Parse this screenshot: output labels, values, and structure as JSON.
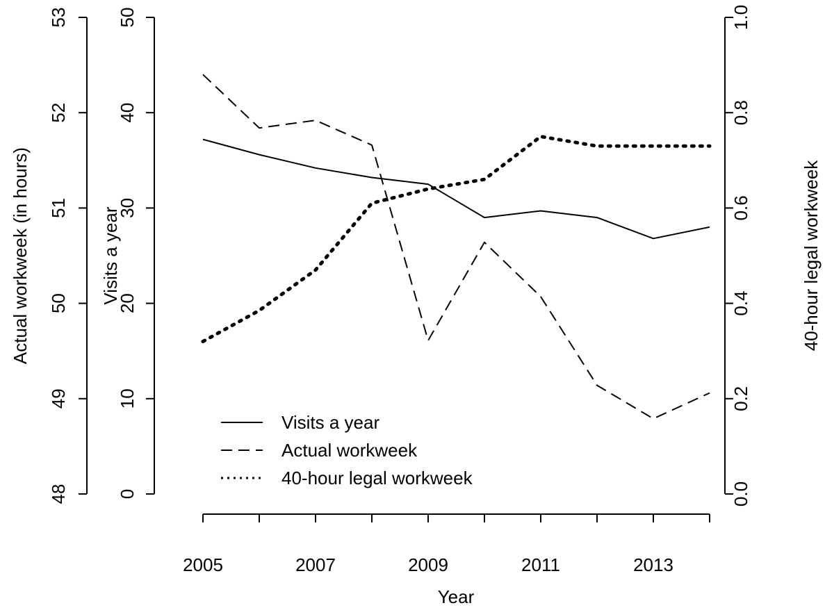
{
  "chart_data": {
    "type": "line",
    "xlabel": "Year",
    "x": [
      2005,
      2006,
      2007,
      2008,
      2009,
      2010,
      2011,
      2012,
      2013,
      2014
    ],
    "x_tick_labels": [
      "2005",
      "2007",
      "2009",
      "2011",
      "2013"
    ],
    "axes": {
      "left": {
        "label": "Actual workweek (in hours)",
        "range": [
          48,
          53
        ],
        "ticks": [
          "48",
          "49",
          "50",
          "51",
          "52",
          "53"
        ]
      },
      "middle": {
        "label": "Visits a year",
        "range": [
          0,
          50
        ],
        "ticks": [
          "0",
          "10",
          "20",
          "30",
          "40",
          "50"
        ]
      },
      "right": {
        "label": "40-hour legal workweek",
        "range": [
          0,
          1
        ],
        "ticks": [
          "0.0",
          "0.2",
          "0.4",
          "0.6",
          "0.8",
          "1.0"
        ]
      }
    },
    "series": [
      {
        "name": "Visits a year",
        "axis": "middle",
        "style": "solid",
        "values": [
          37.2,
          35.6,
          34.2,
          33.2,
          32.5,
          29.0,
          29.7,
          29.0,
          26.8,
          28.0
        ]
      },
      {
        "name": "Actual workweek",
        "axis": "left",
        "style": "dashed",
        "values": [
          52.4,
          51.84,
          51.92,
          51.66,
          49.61,
          50.64,
          50.07,
          49.14,
          48.79,
          49.06
        ]
      },
      {
        "name": "40-hour legal workweek",
        "axis": "right",
        "style": "dotted",
        "values": [
          0.32,
          0.385,
          0.47,
          0.61,
          0.64,
          0.66,
          0.75,
          0.73,
          0.73,
          0.73
        ]
      }
    ],
    "legend": {
      "position": "bottom-left",
      "entries": [
        "Visits a year",
        "Actual workweek",
        "40-hour legal workweek"
      ]
    },
    "grid": false
  }
}
